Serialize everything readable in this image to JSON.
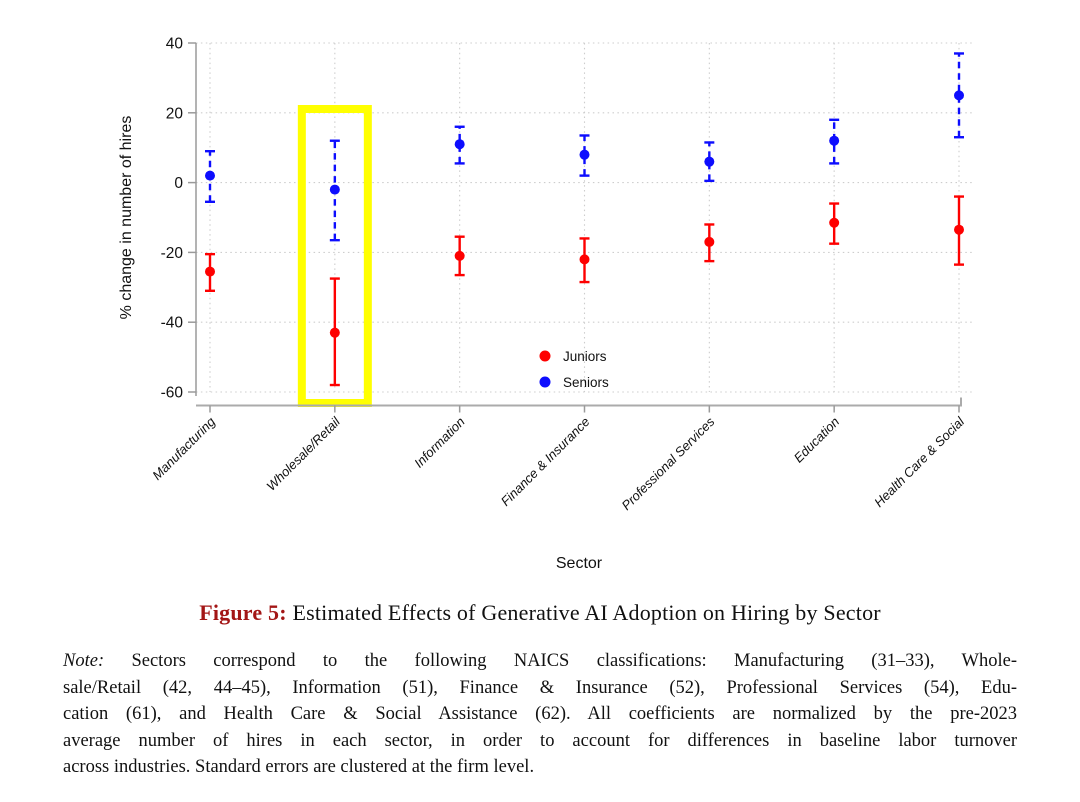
{
  "figure": {
    "caption": {
      "label": "Figure 5:",
      "label_color": "#a31616",
      "title": "Estimated Effects of Generative AI Adoption on Hiring by Sector"
    },
    "note": {
      "label": "Note:",
      "lines": [
        " Sectors correspond to the following NAICS classifications:  Manufacturing (31–33), Whole-",
        "sale/Retail (42, 44–45), Information (51), Finance & Insurance (52), Professional Services (54), Edu-",
        "cation (61), and Health Care & Social Assistance (62).  All coefficients are normalized by the pre-2023",
        "average number of hires in each sector, in order to account for differences in baseline labor turnover",
        "across industries. Standard errors are clustered at the firm level."
      ]
    }
  },
  "chart_data": {
    "type": "scatter",
    "subtype": "coefficient-plot-with-error-bars",
    "title": "",
    "xlabel": "Sector",
    "ylabel": "% change in number of hires",
    "ylim": [
      -60,
      40
    ],
    "yticks": [
      40,
      20,
      0,
      -20,
      -40,
      -60
    ],
    "grid": "dotted",
    "legend_position": "inside-bottom-center",
    "categories": [
      "Manufacturing",
      "Wholesale/Retail",
      "Information",
      "Finance & Insurance",
      "Professional Services",
      "Education",
      "Health Care & Social"
    ],
    "highlighted_category": "Wholesale/Retail",
    "highlight_color": "#ffff00",
    "series": [
      {
        "name": "Juniors",
        "color": "#fe0000",
        "line_style": "solid",
        "values": [
          -25.5,
          -43,
          -21,
          -22,
          -17,
          -11.5,
          -13.5
        ],
        "ci_low": [
          -31,
          -58,
          -26.5,
          -28.5,
          -22.5,
          -17.5,
          -23.5
        ],
        "ci_high": [
          -20.5,
          -27.5,
          -15.5,
          -16,
          -12,
          -6,
          -4
        ]
      },
      {
        "name": "Seniors",
        "color": "#0d0dfe",
        "line_style": "dashed",
        "values": [
          2,
          -2,
          11,
          8,
          6,
          12,
          25
        ],
        "ci_low": [
          -5.5,
          -16.5,
          5.5,
          2,
          0.5,
          5.5,
          13
        ],
        "ci_high": [
          9,
          12,
          16,
          13.5,
          11.5,
          18,
          37
        ]
      }
    ]
  }
}
